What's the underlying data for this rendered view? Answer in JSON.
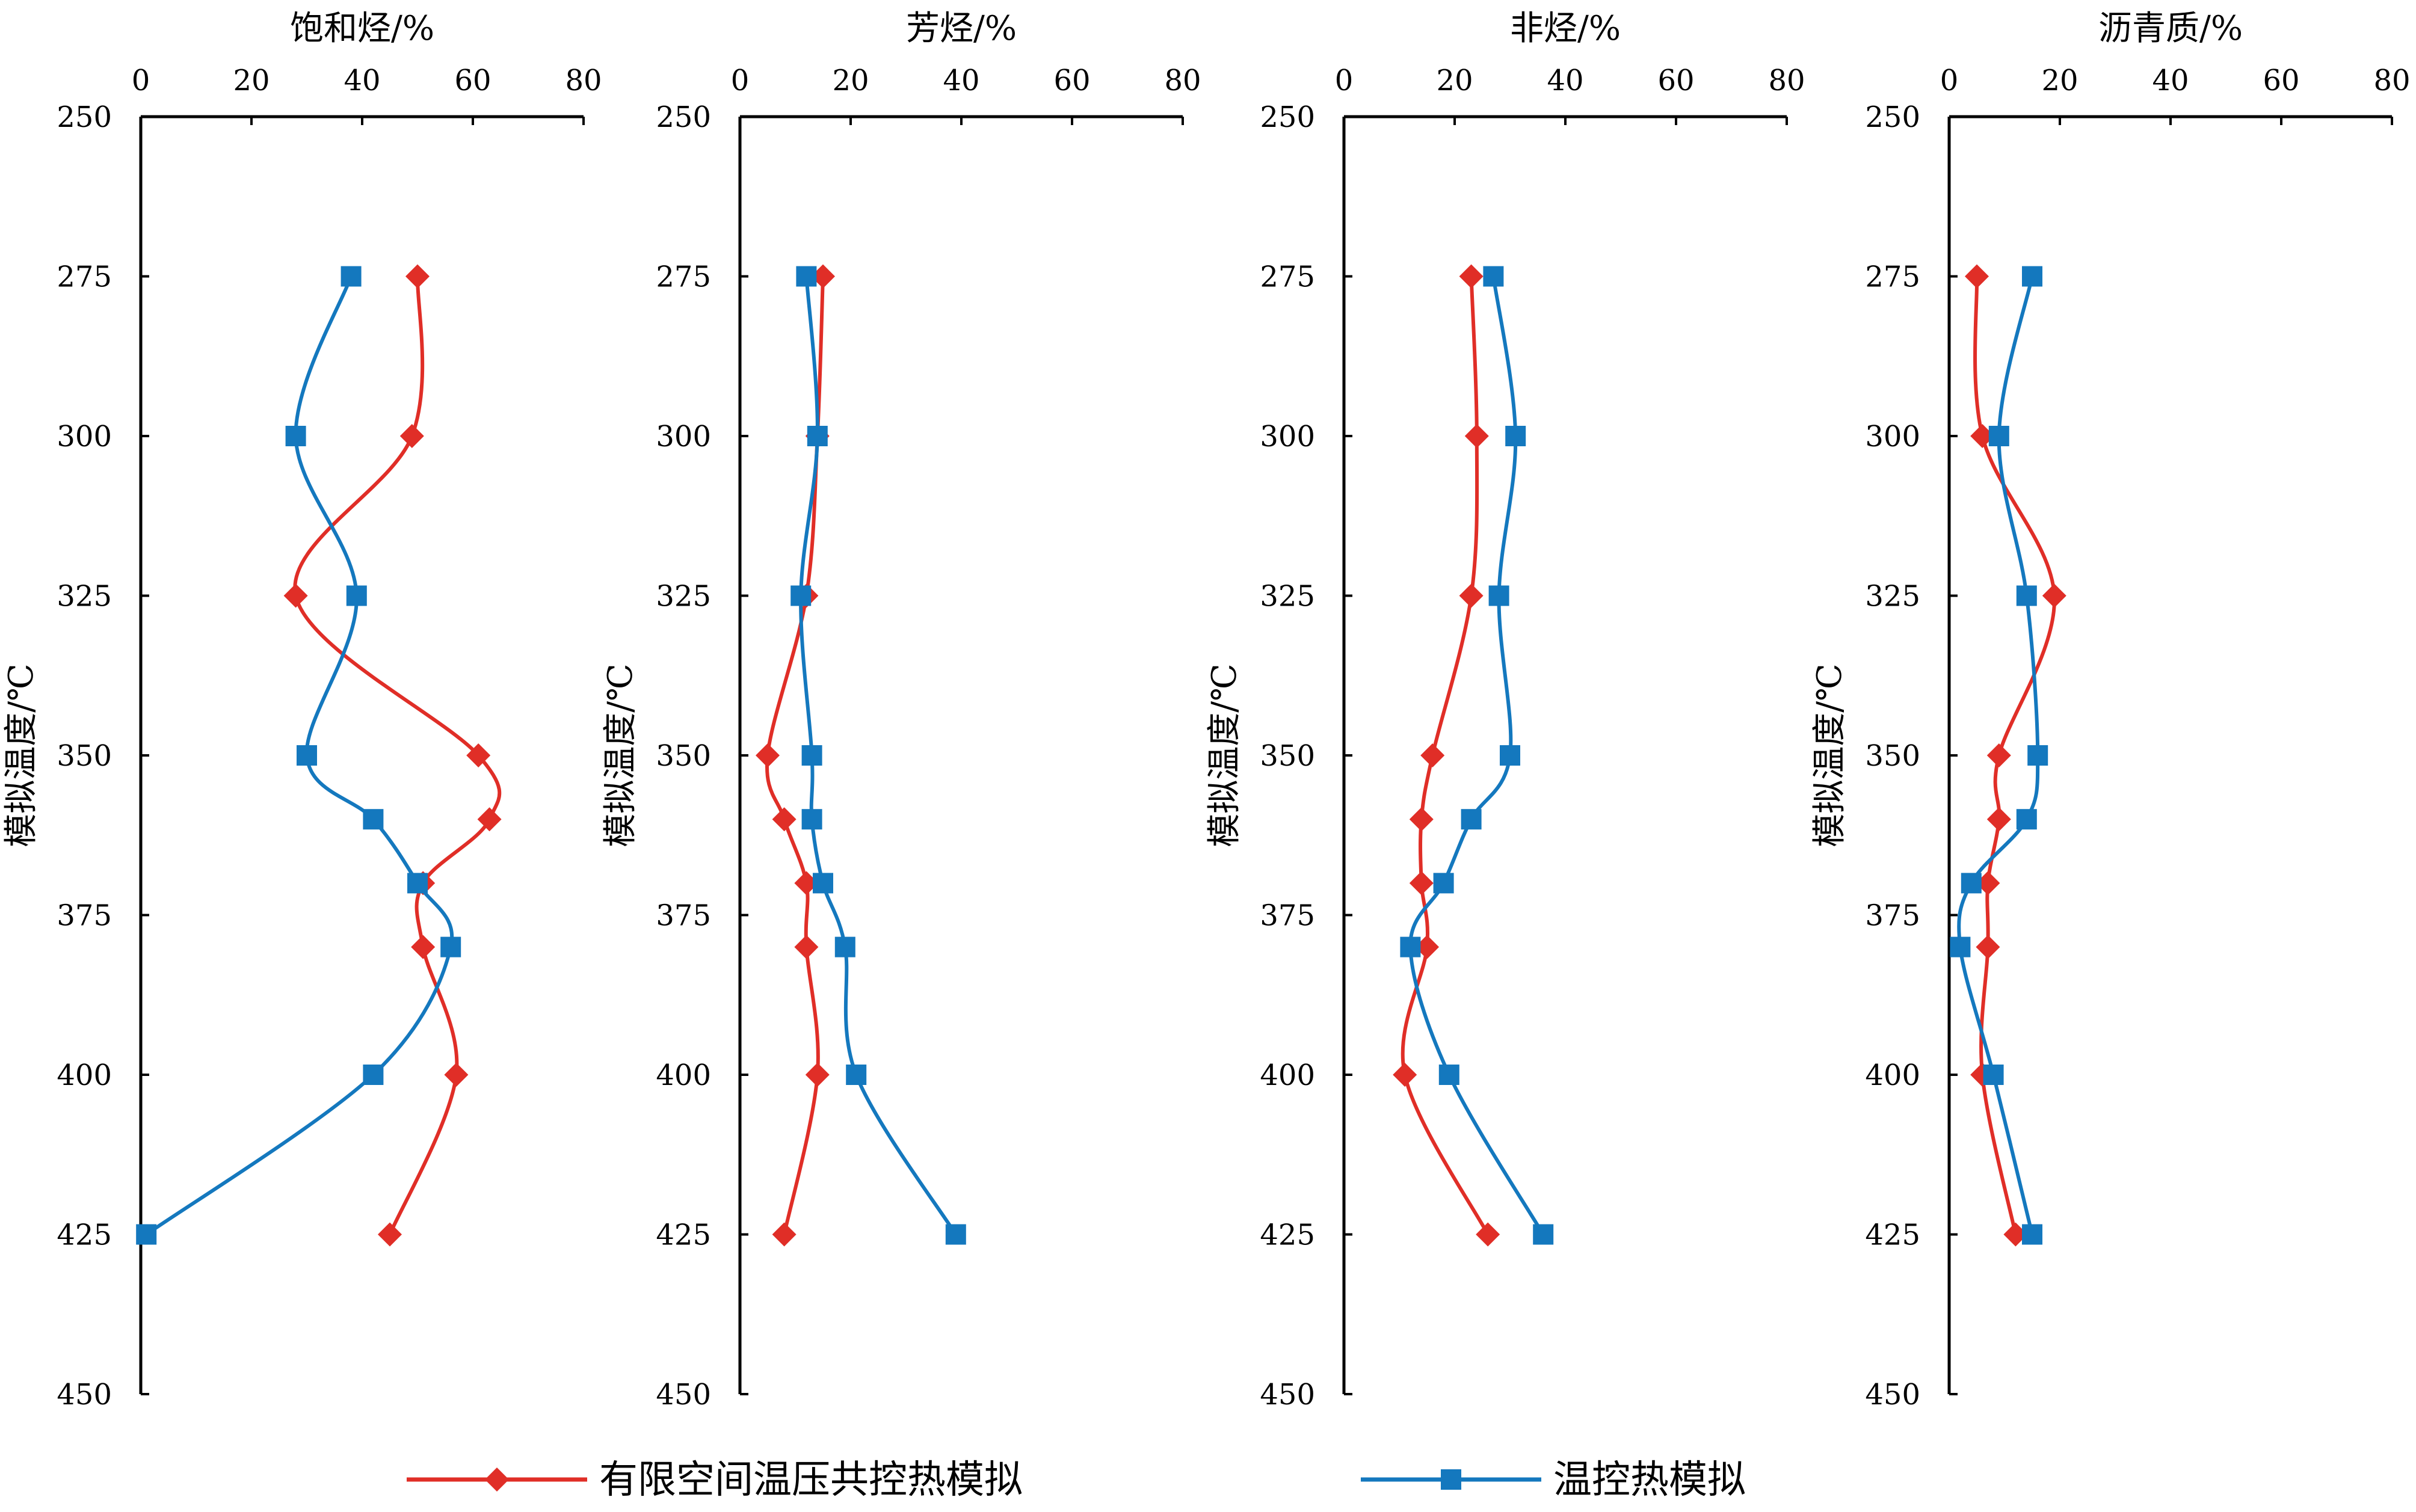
{
  "chart_data": [
    {
      "type": "line",
      "title": "饱和烃/%",
      "ylabel": "模拟温度/℃",
      "xlim": [
        0,
        80
      ],
      "ylim": [
        250,
        450
      ],
      "y_inverted": true,
      "x_axis_position": "top",
      "xticks": [
        "0",
        "20",
        "40",
        "60",
        "80"
      ],
      "yticks": [
        "250",
        "275",
        "300",
        "325",
        "350",
        "375",
        "400",
        "425",
        "450"
      ],
      "series": [
        {
          "name": "有限空间温压共控热模拟",
          "color": "#e02e27",
          "marker": "diamond",
          "points": [
            [
              50,
              275
            ],
            [
              49,
              300
            ],
            [
              28,
              325
            ],
            [
              61,
              350
            ],
            [
              63,
              360
            ],
            [
              51,
              370
            ],
            [
              51,
              380
            ],
            [
              57,
              400
            ],
            [
              45,
              425
            ]
          ]
        },
        {
          "name": "温控热模拟",
          "color": "#1478be",
          "marker": "square",
          "points": [
            [
              38,
              275
            ],
            [
              28,
              300
            ],
            [
              39,
              325
            ],
            [
              30,
              350
            ],
            [
              42,
              360
            ],
            [
              50,
              370
            ],
            [
              56,
              380
            ],
            [
              42,
              400
            ],
            [
              1,
              425
            ]
          ]
        }
      ]
    },
    {
      "type": "line",
      "title": "芳烃/%",
      "ylabel": "模拟温度/℃",
      "xlim": [
        0,
        80
      ],
      "ylim": [
        250,
        450
      ],
      "y_inverted": true,
      "x_axis_position": "top",
      "xticks": [
        "0",
        "20",
        "40",
        "60",
        "80"
      ],
      "yticks": [
        "250",
        "275",
        "300",
        "325",
        "350",
        "375",
        "400",
        "425",
        "450"
      ],
      "series": [
        {
          "name": "有限空间温压共控热模拟",
          "color": "#e02e27",
          "marker": "diamond",
          "points": [
            [
              15,
              275
            ],
            [
              14,
              300
            ],
            [
              12,
              325
            ],
            [
              5,
              350
            ],
            [
              8,
              360
            ],
            [
              12,
              370
            ],
            [
              12,
              380
            ],
            [
              14,
              400
            ],
            [
              8,
              425
            ]
          ]
        },
        {
          "name": "温控热模拟",
          "color": "#1478be",
          "marker": "square",
          "points": [
            [
              12,
              275
            ],
            [
              14,
              300
            ],
            [
              11,
              325
            ],
            [
              13,
              350
            ],
            [
              13,
              360
            ],
            [
              15,
              370
            ],
            [
              19,
              380
            ],
            [
              21,
              400
            ],
            [
              39,
              425
            ]
          ]
        }
      ]
    },
    {
      "type": "line",
      "title": "非烃/%",
      "ylabel": "模拟温度/℃",
      "xlim": [
        0,
        80
      ],
      "ylim": [
        250,
        450
      ],
      "y_inverted": true,
      "x_axis_position": "top",
      "xticks": [
        "0",
        "20",
        "40",
        "60",
        "80"
      ],
      "yticks": [
        "250",
        "275",
        "300",
        "325",
        "350",
        "375",
        "400",
        "425",
        "450"
      ],
      "series": [
        {
          "name": "有限空间温压共控热模拟",
          "color": "#e02e27",
          "marker": "diamond",
          "points": [
            [
              23,
              275
            ],
            [
              24,
              300
            ],
            [
              23,
              325
            ],
            [
              16,
              350
            ],
            [
              14,
              360
            ],
            [
              14,
              370
            ],
            [
              15,
              380
            ],
            [
              11,
              400
            ],
            [
              26,
              425
            ]
          ]
        },
        {
          "name": "温控热模拟",
          "color": "#1478be",
          "marker": "square",
          "points": [
            [
              27,
              275
            ],
            [
              31,
              300
            ],
            [
              28,
              325
            ],
            [
              30,
              350
            ],
            [
              23,
              360
            ],
            [
              18,
              370
            ],
            [
              12,
              380
            ],
            [
              19,
              400
            ],
            [
              36,
              425
            ]
          ]
        }
      ]
    },
    {
      "type": "line",
      "title": "沥青质/%",
      "ylabel": "模拟温度/℃",
      "xlim": [
        0,
        80
      ],
      "ylim": [
        250,
        450
      ],
      "y_inverted": true,
      "x_axis_position": "top",
      "xticks": [
        "0",
        "20",
        "40",
        "60",
        "80"
      ],
      "yticks": [
        "250",
        "275",
        "300",
        "325",
        "350",
        "375",
        "400",
        "425",
        "450"
      ],
      "series": [
        {
          "name": "有限空间温压共控热模拟",
          "color": "#e02e27",
          "marker": "diamond",
          "points": [
            [
              5,
              275
            ],
            [
              6,
              300
            ],
            [
              19,
              325
            ],
            [
              9,
              350
            ],
            [
              9,
              360
            ],
            [
              7,
              370
            ],
            [
              7,
              380
            ],
            [
              6,
              400
            ],
            [
              12,
              425
            ]
          ]
        },
        {
          "name": "温控热模拟",
          "color": "#1478be",
          "marker": "square",
          "points": [
            [
              15,
              275
            ],
            [
              9,
              300
            ],
            [
              14,
              325
            ],
            [
              16,
              350
            ],
            [
              14,
              360
            ],
            [
              4,
              370
            ],
            [
              2,
              380
            ],
            [
              8,
              400
            ],
            [
              15,
              425
            ]
          ]
        }
      ]
    }
  ],
  "legend": {
    "position": "bottom",
    "items": [
      {
        "label": "有限空间温压共控热模拟",
        "color": "#e02e27",
        "marker": "diamond"
      },
      {
        "label": "温控热模拟",
        "color": "#1478be",
        "marker": "square"
      }
    ]
  }
}
